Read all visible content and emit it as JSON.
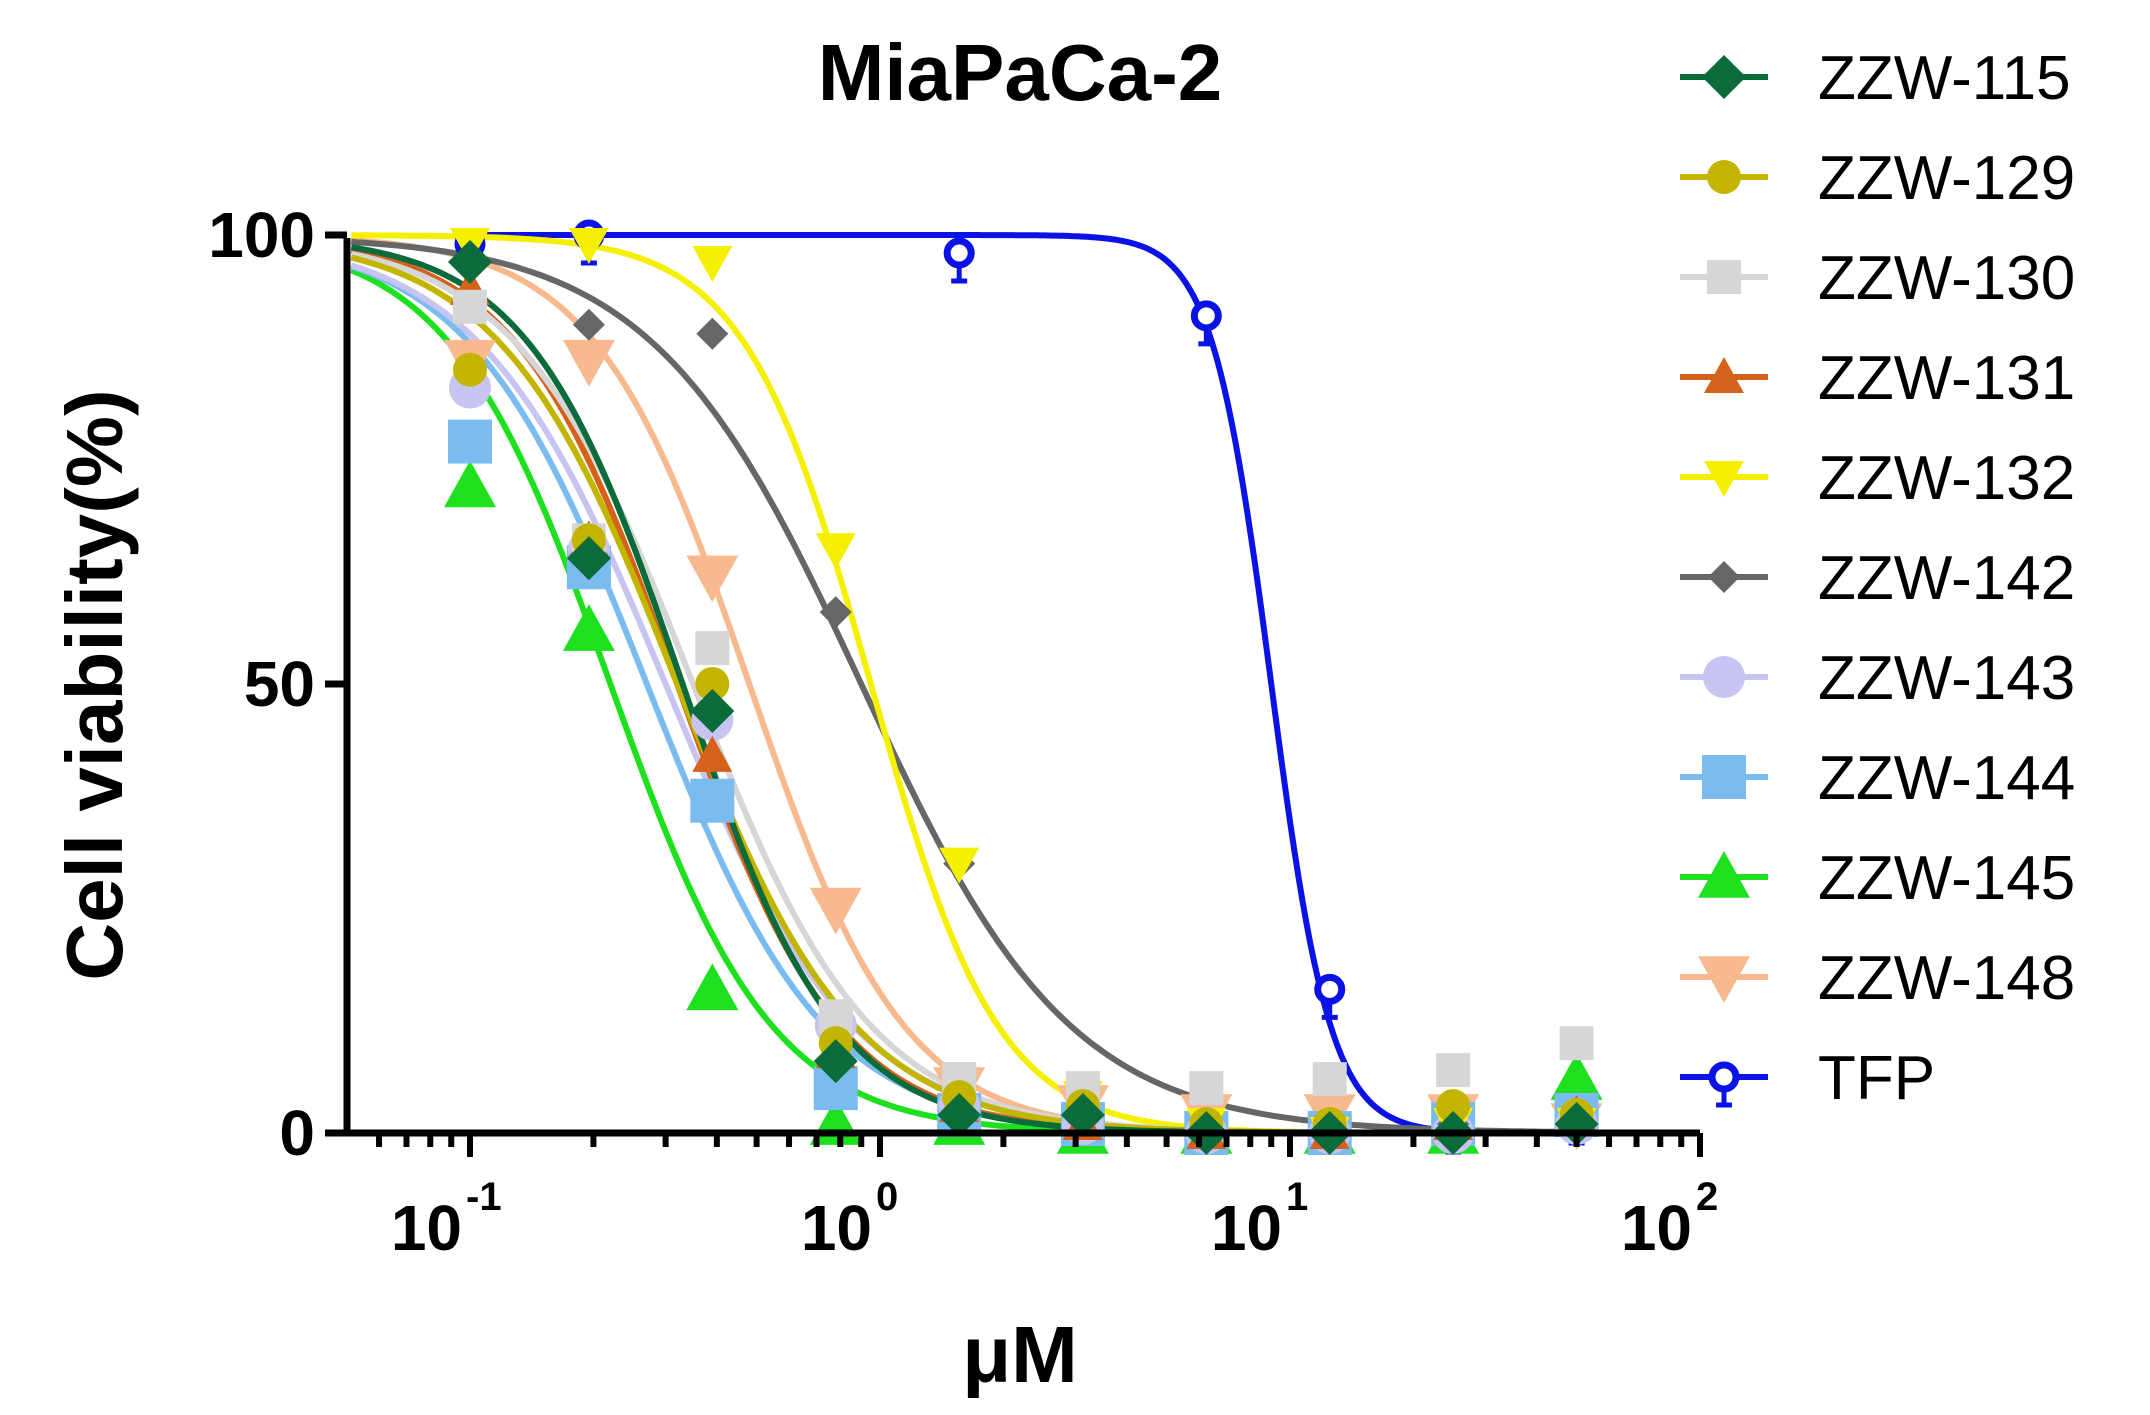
{
  "chart_data": {
    "type": "scatter",
    "title": "MiaPaCa-2",
    "xlabel": "μM",
    "ylabel": "Cell viability(%)",
    "xscale": "log",
    "xlim": [
      0.05,
      100
    ],
    "ylim": [
      0,
      100
    ],
    "y_ticks": [
      {
        "value": 0,
        "label": "0"
      },
      {
        "value": 50,
        "label": "50"
      },
      {
        "value": 100,
        "label": "100"
      }
    ],
    "x_ticks": [
      {
        "value": 0.1,
        "base": "10",
        "exp": "-1"
      },
      {
        "value": 1,
        "base": "10",
        "exp": "0"
      },
      {
        "value": 10,
        "base": "10",
        "exp": "1"
      },
      {
        "value": 100,
        "base": "10",
        "exp": "2"
      }
    ],
    "legend_position": "right",
    "series": [
      {
        "name": "ZZW-115",
        "color": "#0b6b3a",
        "marker": "diamond",
        "ic50": 0.33,
        "hill": 2.3,
        "x": [
          0.1,
          0.195,
          0.39,
          0.78,
          1.56,
          3.125,
          6.25,
          12.5,
          25,
          50
        ],
        "y": [
          97,
          64,
          47,
          8,
          2,
          2,
          0,
          0,
          0,
          1
        ]
      },
      {
        "name": "ZZW-129",
        "color": "#c3b400",
        "marker": "circle",
        "ic50": 0.32,
        "hill": 2.0,
        "x": [
          0.1,
          0.195,
          0.39,
          0.78,
          1.56,
          3.125,
          6.25,
          12.5,
          25,
          50
        ],
        "y": [
          85,
          66,
          50,
          10,
          4,
          3,
          1,
          1,
          3,
          2
        ]
      },
      {
        "name": "ZZW-130",
        "color": "#d6d6d6",
        "marker": "square",
        "ic50": 0.35,
        "hill": 2.0,
        "x": [
          0.1,
          0.195,
          0.39,
          0.78,
          1.56,
          3.125,
          6.25,
          12.5,
          25,
          50
        ],
        "y": [
          92,
          66,
          54,
          13,
          6,
          5,
          5,
          6,
          7,
          10
        ]
      },
      {
        "name": "ZZW-131",
        "color": "#d4621b",
        "marker": "triangle-up",
        "ic50": 0.32,
        "hill": 2.2,
        "x": [
          0.1,
          0.195,
          0.39,
          0.78,
          1.56,
          3.125,
          6.25,
          12.5,
          25,
          50
        ],
        "y": [
          94,
          66,
          42,
          9,
          3,
          1,
          0,
          0,
          1,
          2
        ]
      },
      {
        "name": "ZZW-132",
        "color": "#f5f000",
        "marker": "triangle-down",
        "ic50": 0.95,
        "hill": 2.8,
        "x": [
          0.1,
          0.195,
          0.39,
          0.78,
          1.56,
          3.125,
          6.25,
          12.5,
          25,
          50
        ],
        "y": [
          99,
          99,
          97,
          65,
          30,
          4,
          1,
          0,
          1,
          1
        ]
      },
      {
        "name": "ZZW-142",
        "color": "#666666",
        "marker": "diamond-small",
        "ic50": 0.9,
        "hill": 1.7,
        "x": [
          0.1,
          0.195,
          0.39,
          0.78,
          1.56,
          3.125,
          6.25,
          12.5,
          25,
          50
        ],
        "y": [
          92,
          90,
          89,
          58,
          30,
          3,
          1,
          1,
          1,
          1
        ]
      },
      {
        "name": "ZZW-143",
        "color": "#c8c4f2",
        "marker": "circle-large",
        "ic50": 0.3,
        "hill": 1.9,
        "x": [
          0.1,
          0.195,
          0.39,
          0.78,
          1.56,
          3.125,
          6.25,
          12.5,
          25,
          50
        ],
        "y": [
          83,
          65,
          46,
          12,
          3,
          1,
          0,
          0,
          0,
          1
        ]
      },
      {
        "name": "ZZW-144",
        "color": "#7bbcf0",
        "marker": "square-large",
        "ic50": 0.27,
        "hill": 2.0,
        "x": [
          0.1,
          0.195,
          0.39,
          0.78,
          1.56,
          3.125,
          6.25,
          12.5,
          25,
          50
        ],
        "y": [
          77,
          63,
          37,
          5,
          2,
          1,
          0,
          0,
          1,
          2
        ]
      },
      {
        "name": "ZZW-145",
        "color": "#1fe01f",
        "marker": "triangle-up-large",
        "ic50": 0.22,
        "hill": 2.2,
        "x": [
          0.1,
          0.195,
          0.39,
          0.78,
          1.56,
          3.125,
          6.25,
          12.5,
          25,
          50
        ],
        "y": [
          72,
          56,
          16,
          1,
          1,
          0,
          0,
          0,
          0,
          6
        ]
      },
      {
        "name": "ZZW-148",
        "color": "#f7b98d",
        "marker": "triangle-down-large",
        "ic50": 0.48,
        "hill": 2.3,
        "x": [
          0.1,
          0.195,
          0.39,
          0.78,
          1.56,
          3.125,
          6.25,
          12.5,
          25,
          50
        ],
        "y": [
          86,
          86,
          62,
          25,
          5,
          3,
          2,
          2,
          2,
          1
        ]
      },
      {
        "name": "TFP",
        "color": "#0a12e6",
        "marker": "circle-errorbar",
        "ic50": 9.0,
        "hill": 6.0,
        "x": [
          0.1,
          0.195,
          1.56,
          6.25,
          12.5,
          25,
          50
        ],
        "y": [
          99,
          100,
          98,
          91,
          16,
          1,
          2
        ]
      }
    ]
  }
}
